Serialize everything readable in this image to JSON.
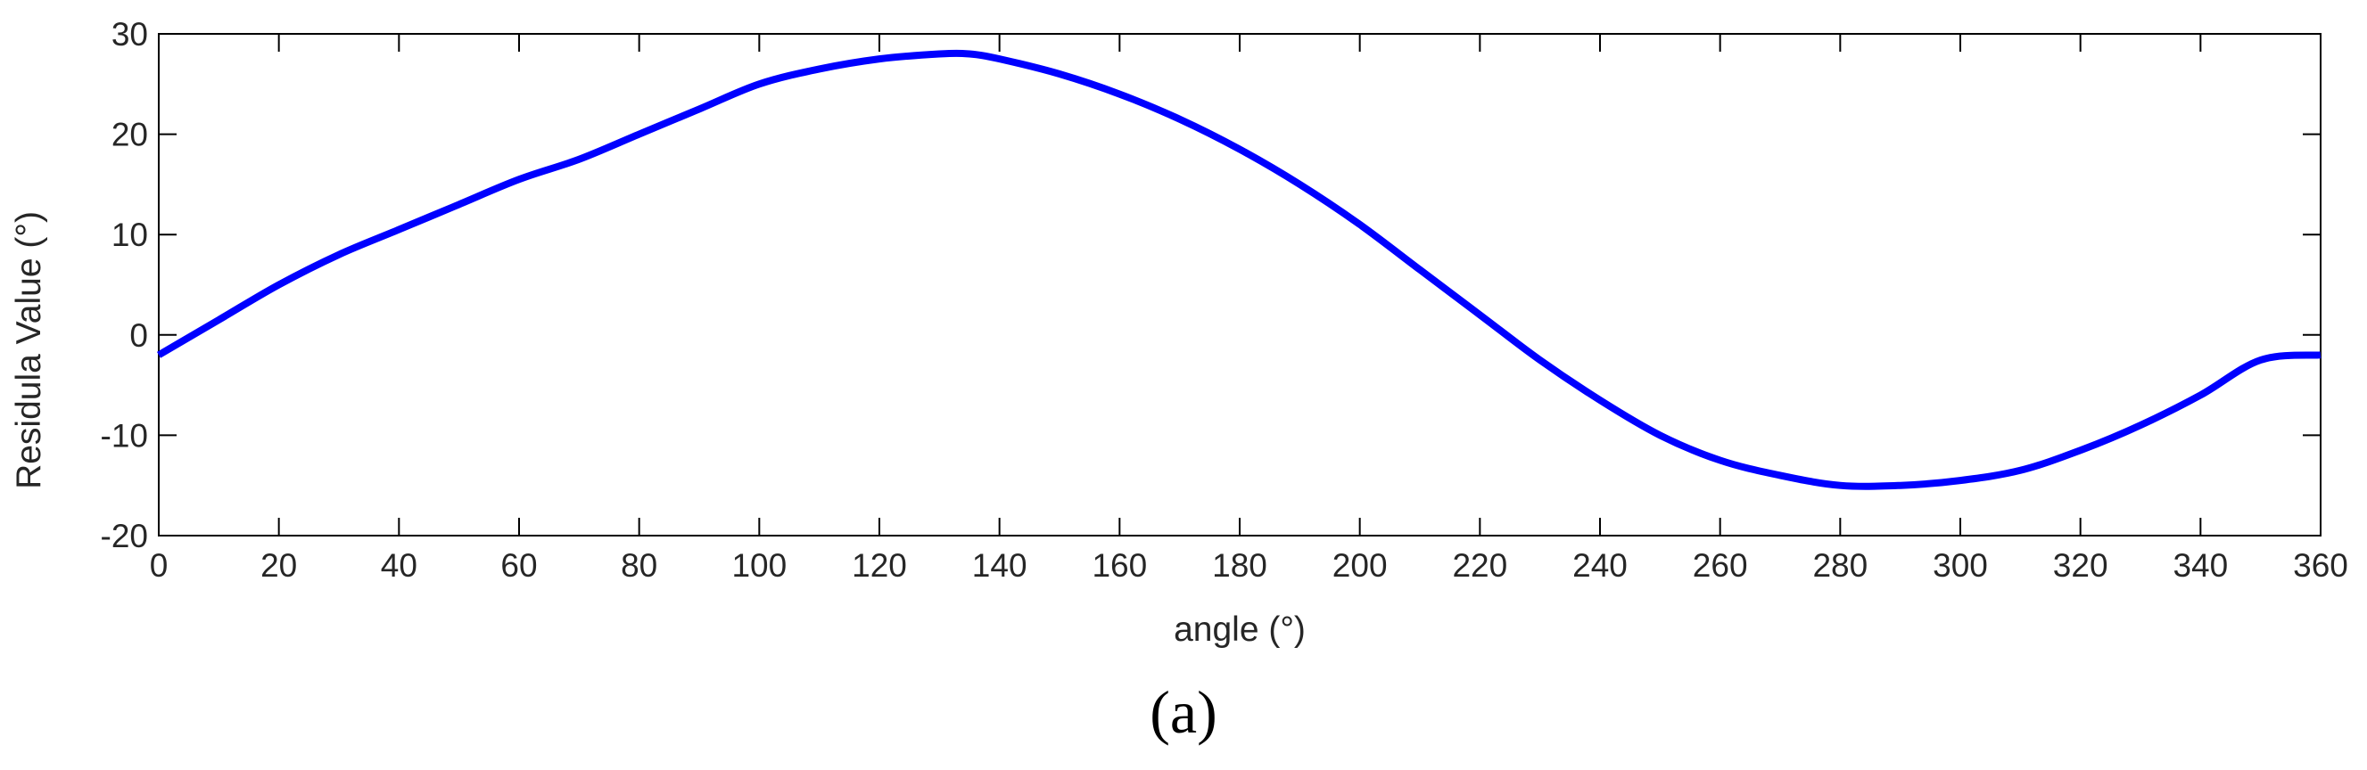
{
  "chart_data": {
    "type": "line",
    "title": "",
    "xlabel": "angle (°)",
    "ylabel": "Residula Value (°)",
    "xlim": [
      0,
      360
    ],
    "ylim": [
      -20,
      30
    ],
    "xticks": [
      0,
      20,
      40,
      60,
      80,
      100,
      120,
      140,
      160,
      180,
      200,
      220,
      240,
      260,
      280,
      300,
      320,
      340,
      360
    ],
    "yticks": [
      -20,
      -10,
      0,
      10,
      20,
      30
    ],
    "grid": false,
    "series": [
      {
        "color": "#0000ff",
        "x": [
          0,
          10,
          20,
          30,
          40,
          50,
          60,
          70,
          80,
          90,
          100,
          110,
          120,
          130,
          135,
          140,
          150,
          160,
          170,
          180,
          190,
          200,
          210,
          220,
          230,
          240,
          250,
          260,
          270,
          280,
          290,
          300,
          310,
          320,
          330,
          340,
          350,
          360
        ],
        "y": [
          -2,
          1.5,
          5,
          8,
          10.5,
          13,
          15.5,
          17.5,
          20,
          22.5,
          25,
          26.5,
          27.5,
          28,
          28,
          27.5,
          26,
          24,
          21.5,
          18.5,
          15,
          11,
          6.5,
          2,
          -2.5,
          -6.5,
          -10,
          -12.5,
          -14,
          -15,
          -15,
          -14.5,
          -13.5,
          -11.5,
          -9,
          -6,
          -2.5,
          -2
        ]
      }
    ],
    "panel_label": "(a)",
    "colors": {
      "line": "#0000ff",
      "axes": "#000000",
      "text": "#262626"
    }
  }
}
